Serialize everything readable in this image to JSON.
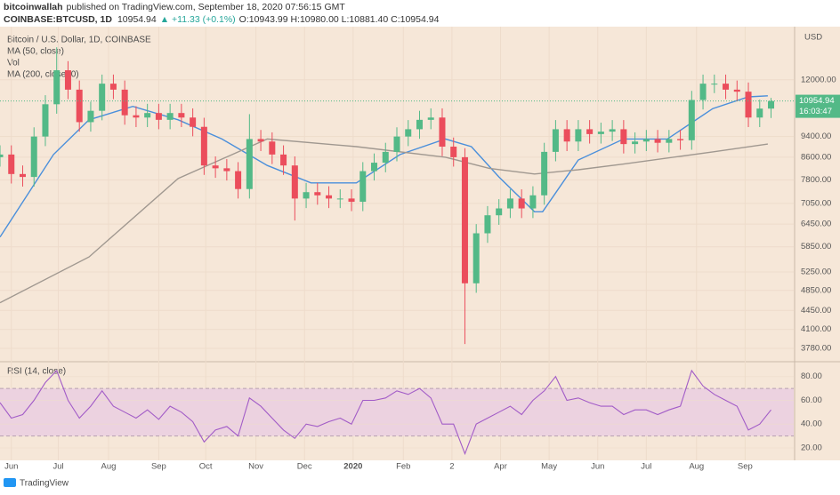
{
  "header": {
    "author": "bitcoinwallah",
    "published": "published on TradingView.com, September 18, 2020 07:56:15 GMT",
    "symbol": "COINBASE:BTCUSD, 1D",
    "price": "10954.94",
    "change": "▲ +11.33 (+0.1%)",
    "ohlc": "O:10943.99 H:10980.00 L:10881.40 C:10954.94"
  },
  "footer": {
    "logo": "TradingView"
  },
  "chart_data": [
    {
      "type": "candlestick",
      "title": "Bitcoin / U.S. Dollar, 1D, COINBASE",
      "vol_label": "Vol",
      "axis_unit": "USD",
      "log_scale": true,
      "up_color": "#53b987",
      "down_color": "#eb4d5c",
      "x": [
        0,
        7,
        14,
        21,
        28,
        35,
        42,
        49,
        56,
        63,
        70,
        77,
        84,
        91,
        98,
        105,
        112,
        119,
        126,
        133,
        140,
        147,
        154,
        161,
        168,
        175,
        182,
        189,
        196,
        203,
        210,
        217,
        224,
        231,
        238,
        245,
        252,
        259,
        266,
        273,
        280,
        287,
        294,
        301,
        308,
        315,
        322,
        329,
        336,
        343,
        350,
        357,
        364,
        371,
        378,
        385,
        392,
        399,
        406,
        413,
        420,
        427,
        434,
        441,
        448,
        455,
        462,
        469,
        476
      ],
      "open": [
        8600,
        8700,
        8000,
        7900,
        9400,
        10800,
        12500,
        11500,
        10000,
        10500,
        11800,
        11500,
        10300,
        10200,
        10400,
        10100,
        10400,
        10200,
        9800,
        8300,
        8200,
        8100,
        7500,
        9300,
        9200,
        8700,
        8300,
        7200,
        7400,
        7300,
        7200,
        7200,
        7100,
        8100,
        8400,
        8800,
        9400,
        9700,
        10100,
        10200,
        9000,
        8600,
        5000,
        6200,
        6700,
        6900,
        7200,
        6900,
        7300,
        8800,
        9700,
        9200,
        9700,
        9500,
        9600,
        9700,
        9100,
        9200,
        9300,
        9150,
        9300,
        9250,
        11000,
        11800,
        11800,
        11500,
        11400,
        10200,
        10600
      ],
      "high": [
        9050,
        9050,
        8300,
        9780,
        11230,
        13800,
        13000,
        11960,
        10920,
        12270,
        12270,
        11960,
        10710,
        10820,
        10820,
        10820,
        10820,
        10610,
        10190,
        8630,
        8530,
        8420,
        10350,
        9670,
        9570,
        9050,
        8630,
        7700,
        7700,
        7590,
        7490,
        7490,
        8420,
        8740,
        9150,
        9780,
        10090,
        10500,
        10610,
        10610,
        9360,
        8940,
        6450,
        6970,
        7180,
        7490,
        7490,
        7590,
        9150,
        10090,
        10090,
        10090,
        10090,
        9980,
        10090,
        10090,
        9570,
        9670,
        9670,
        9670,
        9670,
        11440,
        12270,
        12270,
        12270,
        11960,
        11860,
        11020,
        11100
      ],
      "low": [
        8260,
        7680,
        7580,
        7580,
        9020,
        10370,
        11040,
        9600,
        9600,
        10080,
        11040,
        9890,
        9790,
        9790,
        9700,
        9700,
        9790,
        9410,
        7970,
        7870,
        7780,
        7200,
        7200,
        8830,
        8350,
        7970,
        6550,
        6910,
        7010,
        6910,
        6910,
        6820,
        6820,
        7780,
        8060,
        8450,
        9020,
        9310,
        9700,
        8640,
        8260,
        3850,
        4800,
        5950,
        6430,
        6620,
        6620,
        6620,
        7010,
        8450,
        8830,
        8830,
        9120,
        9120,
        9220,
        8740,
        8740,
        8830,
        8780,
        8780,
        8880,
        8880,
        10560,
        11330,
        11040,
        10940,
        9790,
        9790,
        10180
      ],
      "close": [
        8700,
        8000,
        7900,
        9400,
        10800,
        12500,
        11500,
        10000,
        10500,
        11800,
        11500,
        10300,
        10200,
        10400,
        10100,
        10400,
        10200,
        9800,
        8300,
        8200,
        8100,
        7500,
        9300,
        9200,
        8700,
        8300,
        7200,
        7400,
        7300,
        7200,
        7200,
        7100,
        8100,
        8400,
        8800,
        9400,
        9700,
        10100,
        10200,
        9000,
        8600,
        5000,
        6200,
        6700,
        6900,
        7200,
        6900,
        7300,
        8800,
        9700,
        9200,
        9700,
        9500,
        9600,
        9700,
        9100,
        9200,
        9300,
        9150,
        9300,
        9250,
        11000,
        11800,
        11800,
        11500,
        11400,
        10200,
        10600,
        10950
      ],
      "series": [
        {
          "name": "MA (50, close)",
          "color": "#4a8fdb",
          "x": [
            0,
            33,
            55,
            82,
            110,
            137,
            165,
            192,
            220,
            247,
            275,
            291,
            308,
            330,
            335,
            357,
            385,
            412,
            440,
            462,
            474
          ],
          "values": [
            6100,
            8700,
            10100,
            10700,
            10100,
            9300,
            8300,
            7700,
            7700,
            8700,
            9300,
            9000,
            7900,
            6800,
            6800,
            8500,
            9300,
            9300,
            10600,
            11150,
            11200
          ]
        },
        {
          "name": "MA (200, close, 0)",
          "color": "#a09890",
          "x": [
            0,
            55,
            110,
            165,
            220,
            275,
            302,
            330,
            357,
            385,
            440,
            474
          ],
          "values": [
            4600,
            5600,
            7850,
            9300,
            9000,
            8600,
            8200,
            8000,
            8150,
            8350,
            8800,
            9100
          ]
        }
      ],
      "last_price": {
        "value": 10954.94,
        "label": "10954.94"
      },
      "countdown": "16:03:47",
      "xlim": [
        0,
        490
      ],
      "ylim": [
        3610,
        14850
      ],
      "xticks": [
        {
          "value": 7,
          "label": "Jun"
        },
        {
          "value": 36,
          "label": "Jul"
        },
        {
          "value": 67,
          "label": "Aug"
        },
        {
          "value": 98,
          "label": "Sep"
        },
        {
          "value": 127,
          "label": "Oct"
        },
        {
          "value": 158,
          "label": "Nov"
        },
        {
          "value": 188,
          "label": "Dec"
        },
        {
          "value": 218,
          "label": "2020"
        },
        {
          "value": 249,
          "label": "Feb"
        },
        {
          "value": 279,
          "label": "2"
        },
        {
          "value": 309,
          "label": "Apr"
        },
        {
          "value": 339,
          "label": "May"
        },
        {
          "value": 369,
          "label": "Jun"
        },
        {
          "value": 399,
          "label": "Jul"
        },
        {
          "value": 430,
          "label": "Aug"
        },
        {
          "value": 460,
          "label": "Sep"
        }
      ],
      "yticks": [
        {
          "value": 12000,
          "label": "12000.00"
        },
        {
          "value": 9400,
          "label": "9400.00"
        },
        {
          "value": 8600,
          "label": "8600.00"
        },
        {
          "value": 7800,
          "label": "7800.00"
        },
        {
          "value": 7050,
          "label": "7050.00"
        },
        {
          "value": 6450,
          "label": "6450.00"
        },
        {
          "value": 5850,
          "label": "5850.00"
        },
        {
          "value": 5250,
          "label": "5250.00"
        },
        {
          "value": 4850,
          "label": "4850.00"
        },
        {
          "value": 4450,
          "label": "4450.00"
        },
        {
          "value": 4100,
          "label": "4100.00"
        },
        {
          "value": 3780,
          "label": "3780.00"
        }
      ]
    },
    {
      "type": "line",
      "title": "RSI (14, close)",
      "color": "#a25cc7",
      "band": [
        30,
        70
      ],
      "band_color": "#ecd2e0",
      "x": [
        0,
        7,
        14,
        21,
        28,
        35,
        42,
        49,
        56,
        63,
        70,
        77,
        84,
        91,
        98,
        105,
        112,
        119,
        126,
        133,
        140,
        147,
        154,
        161,
        168,
        175,
        182,
        189,
        196,
        203,
        210,
        217,
        224,
        231,
        238,
        245,
        252,
        259,
        266,
        273,
        280,
        287,
        294,
        301,
        308,
        315,
        322,
        329,
        336,
        343,
        350,
        357,
        364,
        371,
        378,
        385,
        392,
        399,
        406,
        413,
        420,
        427,
        434,
        441,
        448,
        455,
        462,
        469,
        476
      ],
      "values": [
        58,
        45,
        48,
        60,
        75,
        85,
        60,
        45,
        55,
        68,
        55,
        50,
        45,
        52,
        44,
        55,
        50,
        42,
        25,
        35,
        38,
        30,
        62,
        55,
        45,
        35,
        28,
        40,
        38,
        42,
        45,
        40,
        60,
        60,
        62,
        68,
        65,
        70,
        62,
        40,
        40,
        15,
        40,
        45,
        50,
        55,
        48,
        60,
        68,
        80,
        60,
        62,
        58,
        55,
        55,
        48,
        52,
        52,
        48,
        52,
        55,
        85,
        72,
        65,
        60,
        55,
        35,
        40,
        52
      ],
      "xlim": [
        0,
        490
      ],
      "ylim": [
        11,
        91
      ],
      "yticks": [
        {
          "value": 80,
          "label": "80.00"
        },
        {
          "value": 60,
          "label": "60.00"
        },
        {
          "value": 40,
          "label": "40.00"
        },
        {
          "value": 20,
          "label": "20.00"
        }
      ]
    }
  ]
}
